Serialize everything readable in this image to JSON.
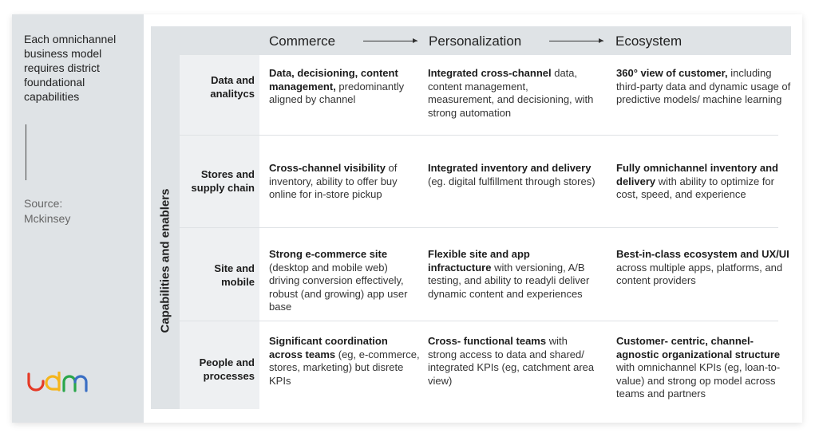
{
  "sidebar": {
    "title": "Each omnichannel business model requires district foundational capabilities",
    "source": "Source: Mckinsey",
    "logo_text": "udm",
    "logo_colors": [
      "#e53a26",
      "#f5b51c",
      "#2aa64a",
      "#3a6fc4"
    ]
  },
  "header": {
    "columns": [
      "Commerce",
      "Personalization",
      "Ecosystem"
    ]
  },
  "side_label": "Capabilities and enablers",
  "rows": [
    {
      "label": "Data and analitycs",
      "cells": [
        {
          "bold": "Data, decisioning, content management,",
          "text": " predominantly aligned by channel"
        },
        {
          "bold": "Integrated cross-channel",
          "text": " data, content management, measurement, and decisioning, with strong automation"
        },
        {
          "bold": "360° view of customer,",
          "text": " including third-party data and dynamic usage of predictive models/ machine learning"
        }
      ]
    },
    {
      "label": "Stores and supply chain",
      "cells": [
        {
          "bold": "Cross-channel visibility",
          "text": " of inventory, ability to offer buy online for in-store pickup"
        },
        {
          "bold": "Integrated inventory and delivery",
          "text": " (eg. digital fulfillment through stores)"
        },
        {
          "bold": "Fully omnichannel inventory and delivery",
          "text": " with ability to optimize for cost, speed, and experience"
        }
      ]
    },
    {
      "label": "Site and mobile",
      "cells": [
        {
          "bold": "Strong e-commerce site",
          "text": " (desktop and mobile web) driving conversion effectively, robust (and growing) app user base"
        },
        {
          "bold": "Flexible site and app infractucture",
          "text": " with versioning, A/B testing, and ability to readyli deliver dynamic content and experiences"
        },
        {
          "bold": "Best-in-class ecosystem and UX/UI",
          "text": " across multiple apps, platforms, and content providers"
        }
      ]
    },
    {
      "label": "People and processes",
      "cells": [
        {
          "bold": "Significant coordination across teams",
          "text": " (eg, e-commerce, stores, marketing) but disrete KPIs"
        },
        {
          "bold": "Cross- functional teams",
          "text": " with strong access to data and shared/ integrated KPIs (eg, catchment area view)"
        },
        {
          "bold": "Customer- centric, channel-agnostic organizational structure",
          "text": " with omnichannel KPIs (eg, loan-to-value) and strong op model across teams and partners"
        }
      ]
    }
  ]
}
